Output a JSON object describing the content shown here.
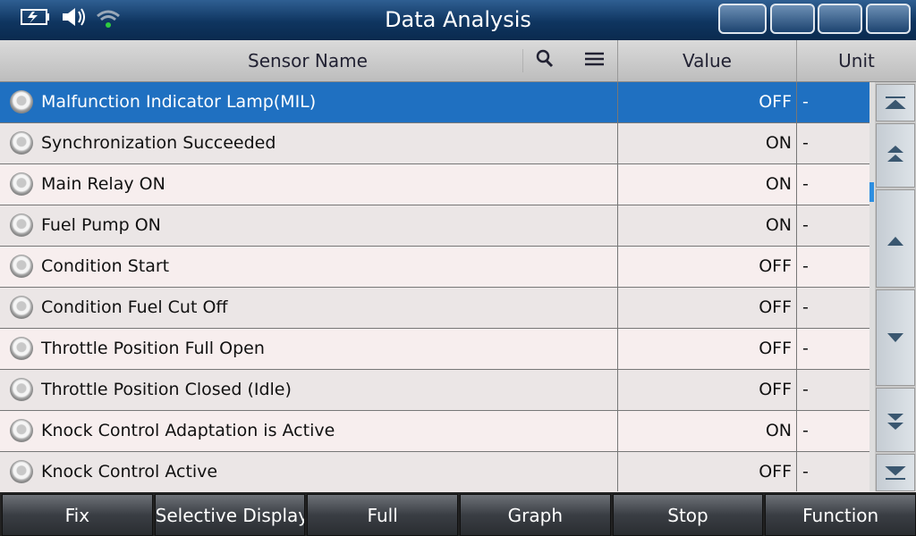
{
  "header": {
    "title": "Data Analysis"
  },
  "table": {
    "columns": [
      "Sensor Name",
      "Value",
      "Unit"
    ],
    "rows": [
      [
        "Malfunction Indicator Lamp(MIL)",
        "OFF",
        "-"
      ],
      [
        "Synchronization Succeeded",
        "ON",
        "-"
      ],
      [
        "Main Relay ON",
        "ON",
        "-"
      ],
      [
        "Fuel Pump ON",
        "ON",
        "-"
      ],
      [
        "Condition Start",
        "OFF",
        "-"
      ],
      [
        "Condition Fuel Cut Off",
        "OFF",
        "-"
      ],
      [
        "Throttle Position Full Open",
        "OFF",
        "-"
      ],
      [
        "Throttle Position Closed (Idle)",
        "OFF",
        "-"
      ],
      [
        "Knock Control Adaptation is Active",
        "ON",
        "-"
      ],
      [
        "Knock Control Active",
        "OFF",
        "-"
      ]
    ]
  },
  "toolbar": [
    "Fix",
    "Selective Display",
    "Full",
    "Graph",
    "Stop",
    "Function"
  ]
}
